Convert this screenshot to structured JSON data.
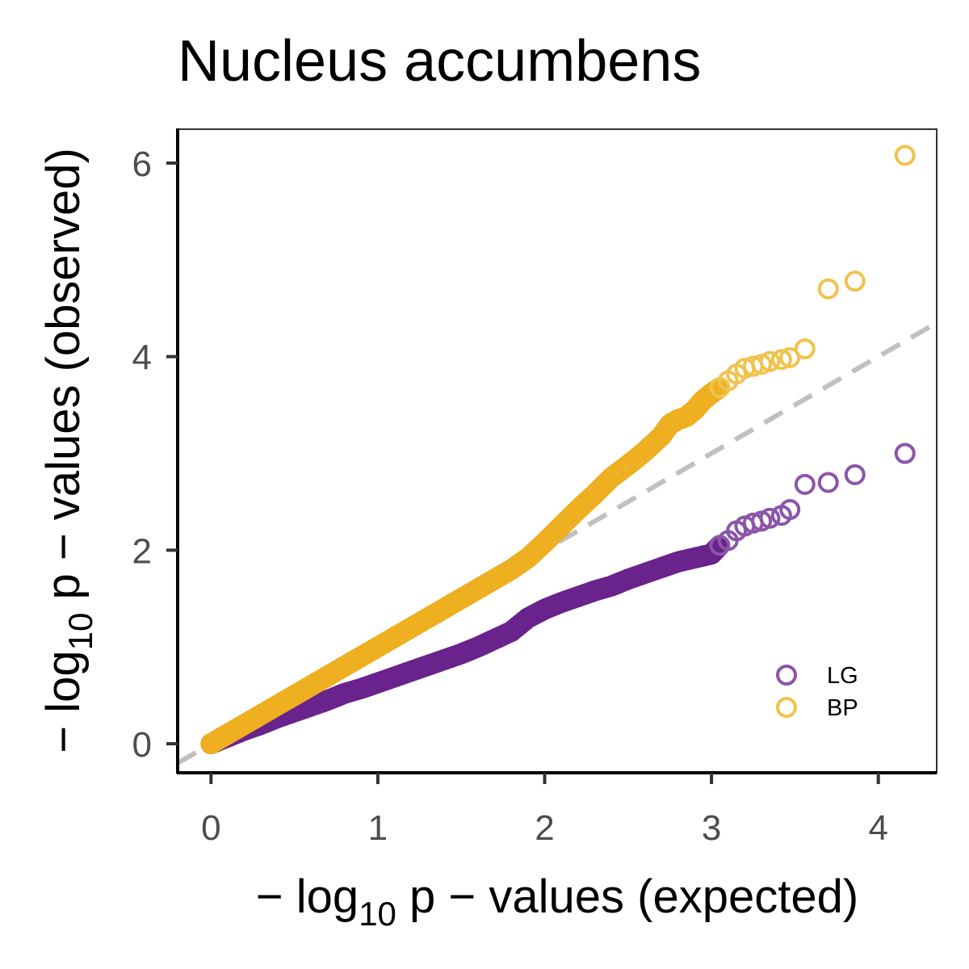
{
  "chart_data": {
    "type": "scatter",
    "title": "Nucleus accumbens",
    "xlabel": {
      "prefix": "− log",
      "sub": "10",
      "suffix": " p − values (expected)"
    },
    "ylabel": {
      "prefix": "− log",
      "sub": "10",
      "suffix": " p − values (observed)"
    },
    "xlim": [
      -0.2,
      4.35
    ],
    "ylim": [
      -0.3,
      6.35
    ],
    "x_ticks": [
      0,
      1,
      2,
      3,
      4
    ],
    "y_ticks": [
      0,
      2,
      4,
      6
    ],
    "x_tick_labels": [
      "0",
      "1",
      "2",
      "3",
      "4"
    ],
    "y_tick_labels": [
      "0",
      "2",
      "4",
      "6"
    ],
    "grid": false,
    "legend_position": "bottom-right",
    "reference_line": {
      "slope": 1,
      "intercept": 0,
      "style": "dashed",
      "color": "#c0c0c0"
    },
    "series": [
      {
        "name": "LG",
        "color": "#8b55aa",
        "dense_color": "#6a228c",
        "marker": "open-circle",
        "points": [
          [
            0.0,
            0.0
          ],
          [
            0.1,
            0.07
          ],
          [
            0.2,
            0.14
          ],
          [
            0.3,
            0.2
          ],
          [
            0.4,
            0.27
          ],
          [
            0.5,
            0.33
          ],
          [
            0.6,
            0.39
          ],
          [
            0.7,
            0.45
          ],
          [
            0.8,
            0.52
          ],
          [
            0.9,
            0.57
          ],
          [
            1.0,
            0.63
          ],
          [
            1.1,
            0.69
          ],
          [
            1.2,
            0.75
          ],
          [
            1.3,
            0.81
          ],
          [
            1.4,
            0.87
          ],
          [
            1.5,
            0.93
          ],
          [
            1.6,
            1.0
          ],
          [
            1.7,
            1.08
          ],
          [
            1.8,
            1.16
          ],
          [
            1.9,
            1.3
          ],
          [
            2.0,
            1.39
          ],
          [
            2.1,
            1.46
          ],
          [
            2.2,
            1.52
          ],
          [
            2.3,
            1.58
          ],
          [
            2.4,
            1.63
          ],
          [
            2.5,
            1.7
          ],
          [
            2.6,
            1.76
          ],
          [
            2.7,
            1.82
          ],
          [
            2.75,
            1.85
          ],
          [
            2.8,
            1.88
          ],
          [
            2.85,
            1.9
          ],
          [
            2.9,
            1.92
          ],
          [
            2.95,
            1.94
          ],
          [
            3.0,
            1.96
          ],
          [
            3.05,
            2.05
          ],
          [
            3.1,
            2.1
          ],
          [
            3.15,
            2.2
          ],
          [
            3.2,
            2.25
          ],
          [
            3.25,
            2.28
          ],
          [
            3.3,
            2.3
          ],
          [
            3.35,
            2.33
          ],
          [
            3.42,
            2.36
          ],
          [
            3.47,
            2.42
          ],
          [
            3.56,
            2.68
          ],
          [
            3.7,
            2.7
          ],
          [
            3.86,
            2.78
          ],
          [
            4.16,
            3.0
          ]
        ]
      },
      {
        "name": "BP",
        "color": "#f0c34e",
        "dense_color": "#eeb020",
        "marker": "open-circle",
        "points": [
          [
            0.0,
            0.0
          ],
          [
            0.1,
            0.1
          ],
          [
            0.2,
            0.2
          ],
          [
            0.3,
            0.3
          ],
          [
            0.4,
            0.4
          ],
          [
            0.5,
            0.5
          ],
          [
            0.6,
            0.6
          ],
          [
            0.7,
            0.7
          ],
          [
            0.8,
            0.8
          ],
          [
            0.9,
            0.9
          ],
          [
            1.0,
            1.0
          ],
          [
            1.1,
            1.1
          ],
          [
            1.2,
            1.2
          ],
          [
            1.3,
            1.3
          ],
          [
            1.4,
            1.4
          ],
          [
            1.5,
            1.5
          ],
          [
            1.6,
            1.6
          ],
          [
            1.7,
            1.7
          ],
          [
            1.8,
            1.8
          ],
          [
            1.9,
            1.92
          ],
          [
            2.0,
            2.08
          ],
          [
            2.1,
            2.25
          ],
          [
            2.2,
            2.42
          ],
          [
            2.3,
            2.58
          ],
          [
            2.4,
            2.75
          ],
          [
            2.5,
            2.88
          ],
          [
            2.6,
            3.02
          ],
          [
            2.7,
            3.18
          ],
          [
            2.75,
            3.3
          ],
          [
            2.8,
            3.35
          ],
          [
            2.85,
            3.38
          ],
          [
            2.9,
            3.45
          ],
          [
            2.95,
            3.55
          ],
          [
            3.0,
            3.62
          ],
          [
            3.05,
            3.68
          ],
          [
            3.1,
            3.75
          ],
          [
            3.15,
            3.82
          ],
          [
            3.2,
            3.88
          ],
          [
            3.25,
            3.9
          ],
          [
            3.3,
            3.92
          ],
          [
            3.35,
            3.95
          ],
          [
            3.42,
            3.97
          ],
          [
            3.47,
            3.99
          ],
          [
            3.56,
            4.08
          ],
          [
            3.7,
            4.7
          ],
          [
            3.86,
            4.78
          ],
          [
            4.16,
            6.08
          ]
        ]
      }
    ]
  }
}
